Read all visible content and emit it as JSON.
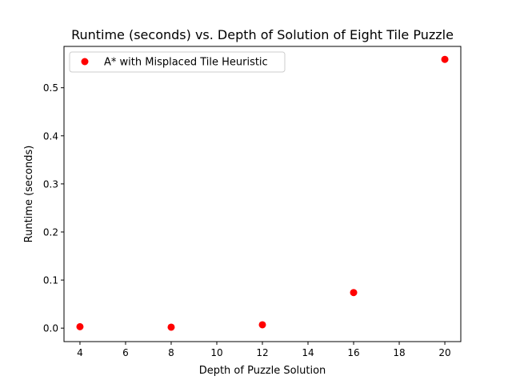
{
  "chart_data": {
    "type": "scatter",
    "title": "Runtime (seconds) vs. Depth of Solution of Eight Tile Puzzle",
    "xlabel": "Depth of Puzzle Solution",
    "ylabel": "Runtime (seconds)",
    "xlim": [
      3.3,
      20.7
    ],
    "ylim": [
      -0.028,
      0.586
    ],
    "xticks": [
      4,
      6,
      8,
      10,
      12,
      14,
      16,
      18,
      20
    ],
    "xtick_labels": [
      "4",
      "6",
      "8",
      "10",
      "12",
      "14",
      "16",
      "18",
      "20"
    ],
    "yticks": [
      0.0,
      0.1,
      0.2,
      0.3,
      0.4,
      0.5
    ],
    "ytick_labels": [
      "0.0",
      "0.1",
      "0.2",
      "0.3",
      "0.4",
      "0.5"
    ],
    "grid": false,
    "legend_position": "upper-left",
    "series": [
      {
        "name": "A* with Misplaced Tile Heuristic",
        "color": "#ff0000",
        "marker": "circle",
        "x": [
          4,
          8,
          12,
          16,
          20
        ],
        "y": [
          0.003,
          0.002,
          0.007,
          0.074,
          0.559
        ]
      }
    ]
  }
}
